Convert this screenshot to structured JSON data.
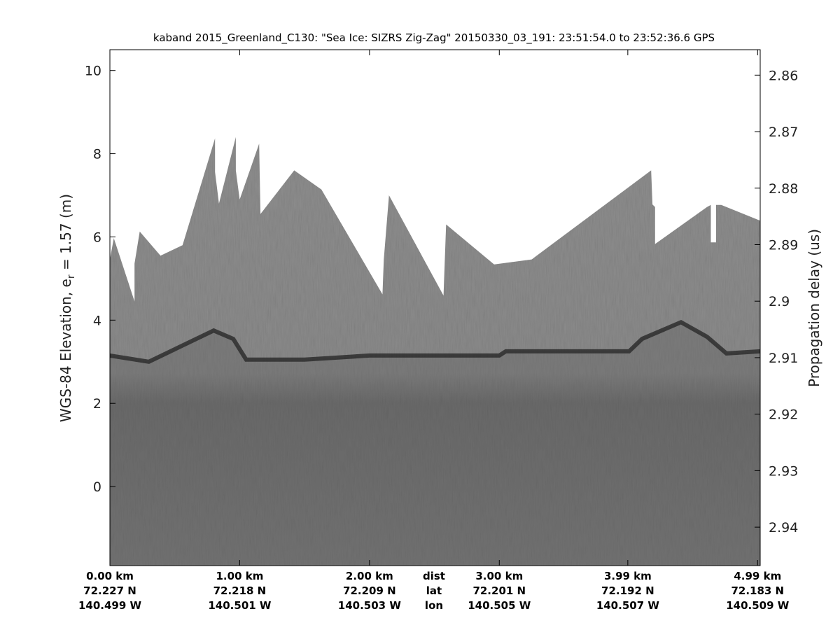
{
  "chart_data": {
    "type": "heatmap",
    "title": "kaband 2015_Greenland_C130: \"Sea Ice: SIZRS Zig-Zag\"  20150330_03_191: 23:51:54.0 to 23:52:36.6 GPS",
    "ylabel_left": "WGS-84 Elevation, e",
    "ylabel_left_subscript": "r",
    "ylabel_left_suffix": " = 1.57 (m)",
    "ylabel_right": "Propagation delay (us)",
    "colormap": "gray",
    "xlim_km": [
      0,
      5.01
    ],
    "ylim_left": [
      -1.9,
      10.5
    ],
    "ylim_right": [
      2.9468,
      2.8555
    ],
    "yticks_left": [
      0,
      2,
      4,
      6,
      8,
      10
    ],
    "yticks_right": [
      "2.86",
      "2.87",
      "2.88",
      "2.89",
      "2.9",
      "2.91",
      "2.92",
      "2.93",
      "2.94"
    ],
    "x_tick_km": [
      0,
      1,
      2,
      3,
      3.99,
      4.99
    ],
    "bottom_rows": {
      "dist": [
        "0.00 km",
        "1.00 km",
        "2.00 km",
        "3.00 km",
        "3.99 km",
        "4.99 km"
      ],
      "lat": [
        "72.227 N",
        "72.218 N",
        "72.209 N",
        "72.201 N",
        "72.192 N",
        "72.183 N"
      ],
      "lon": [
        "140.499 W",
        "140.501 W",
        "140.503 W",
        "140.505 W",
        "140.507 W",
        "140.509 W"
      ],
      "row_labels": [
        "dist",
        "lat",
        "lon"
      ]
    },
    "data_top_elevation": [
      [
        0,
        5.46
      ],
      [
        0.03,
        5.97
      ],
      [
        0.19,
        4.45
      ],
      [
        0.19,
        5.36
      ],
      [
        0.23,
        6.13
      ],
      [
        0.39,
        5.55
      ],
      [
        0.56,
        5.8
      ],
      [
        0.81,
        8.37
      ],
      [
        0.81,
        7.56
      ],
      [
        0.84,
        6.8
      ],
      [
        0.97,
        8.4
      ],
      [
        0.97,
        7.6
      ],
      [
        1.0,
        6.9
      ],
      [
        1.15,
        8.24
      ],
      [
        1.16,
        6.55
      ],
      [
        1.42,
        7.6
      ],
      [
        1.63,
        7.14
      ],
      [
        2.1,
        4.62
      ],
      [
        2.11,
        5.46
      ],
      [
        2.15,
        7.0
      ],
      [
        2.57,
        4.59
      ],
      [
        2.59,
        6.3
      ],
      [
        2.96,
        5.34
      ],
      [
        3.25,
        5.46
      ],
      [
        4.17,
        7.6
      ],
      [
        4.18,
        6.78
      ],
      [
        4.2,
        6.72
      ],
      [
        4.2,
        5.83
      ],
      [
        4.6,
        6.72
      ],
      [
        4.63,
        6.77
      ],
      [
        4.63,
        5.87
      ],
      [
        4.67,
        5.87
      ],
      [
        4.67,
        6.77
      ],
      [
        4.71,
        6.77
      ],
      [
        5.01,
        6.39
      ]
    ],
    "surface_elevation": [
      [
        0,
        3.15
      ],
      [
        0.3,
        3.0
      ],
      [
        0.5,
        3.3
      ],
      [
        0.8,
        3.75
      ],
      [
        0.95,
        3.55
      ],
      [
        1.05,
        3.05
      ],
      [
        1.5,
        3.05
      ],
      [
        2.0,
        3.15
      ],
      [
        3.0,
        3.15
      ],
      [
        3.05,
        3.25
      ],
      [
        4.0,
        3.25
      ],
      [
        4.1,
        3.55
      ],
      [
        4.4,
        3.95
      ],
      [
        4.6,
        3.6
      ],
      [
        4.75,
        3.2
      ],
      [
        5.01,
        3.25
      ]
    ]
  }
}
